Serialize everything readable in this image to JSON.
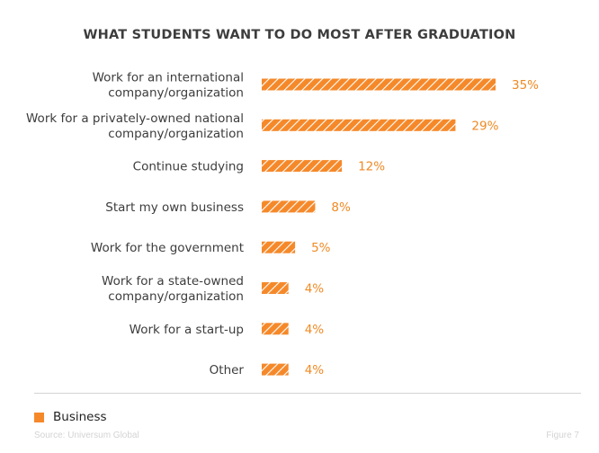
{
  "chart_data": {
    "type": "bar",
    "orientation": "horizontal",
    "title": "WHAT STUDENTS WANT TO DO MOST AFTER GRADUATION",
    "categories": [
      [
        "Work for an international",
        "company/organization"
      ],
      [
        "Work for a privately-owned national",
        "company/organization"
      ],
      [
        "Continue studying"
      ],
      [
        "Start my own business"
      ],
      [
        "Work for the government"
      ],
      [
        "Work for a state-owned",
        "company/organization"
      ],
      [
        "Work for a start-up"
      ],
      [
        "Other"
      ]
    ],
    "series": [
      {
        "name": "Business",
        "values": [
          35,
          29,
          12,
          8,
          5,
          4,
          4,
          4
        ],
        "value_labels": [
          "35%",
          "29%",
          "12%",
          "8%",
          "5%",
          "4%",
          "4%",
          "4%"
        ]
      }
    ],
    "xlim": [
      0,
      35
    ],
    "value_suffix": "%",
    "grid": false,
    "legend_position": "bottom-left",
    "bar_color": "#f5892a",
    "bar_pattern": "diagonal-hatch",
    "hatch_color": "#ffffff",
    "value_label_color": "#f08a24"
  },
  "legend": {
    "label": "Business"
  },
  "footer": {
    "source": "Source: Universum Global",
    "figure": "Figure 7"
  }
}
